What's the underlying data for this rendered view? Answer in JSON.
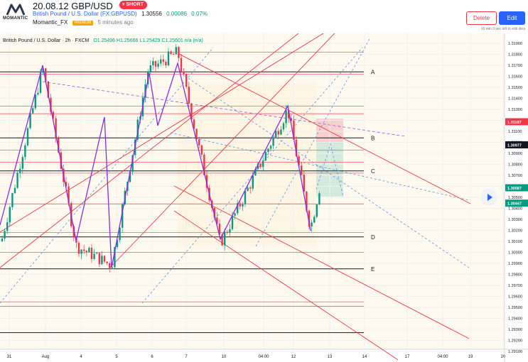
{
  "header": {
    "title": "20.08.12 GBP/USD",
    "badge": "SHORT",
    "symbol_name": "British Pound / U.S. Dollar (FX:GBPUSD)",
    "price": "1.30556",
    "change": "0.00086",
    "change_pct": "0.07%",
    "author": "Momantic_FX",
    "author_tag": "PREMIUM",
    "posted": "5 minutes ago",
    "logo_text": "MOMANTIC",
    "delete_label": "Delete",
    "edit_label": "Edit",
    "edit_note": "10 min 3 sec left to edit idea"
  },
  "legend": {
    "symbol": "British Pound / U.S. Dollar · 2h · FXCM",
    "ohlc": "O1.25496  H1.25666  L1.25429  C1.25601  n/a (n/a)"
  },
  "price_axis": {
    "ticks": [
      "1.31900",
      "1.31800",
      "1.31700",
      "1.31600",
      "1.31500",
      "1.31400",
      "1.31300",
      "1.31200",
      "1.31100",
      "1.31000",
      "1.30900",
      "1.30800",
      "1.30700",
      "1.30600",
      "1.30500",
      "1.30400",
      "1.30300",
      "1.30200",
      "1.30100",
      "1.30000",
      "1.29900",
      "1.29800",
      "1.29700",
      "1.29600",
      "1.29500",
      "1.29400",
      "1.29300",
      "1.29200",
      "1.29100"
    ],
    "tags": [
      {
        "label": "1.31187",
        "color": "#f23645"
      },
      {
        "label": "1.30977",
        "color": "#131722"
      },
      {
        "label": "1.30587",
        "color": "#089981"
      },
      {
        "label": "1.30447",
        "color": "#089981"
      }
    ]
  },
  "time_axis": [
    "31",
    "Aug",
    "4",
    "5",
    "6",
    "7",
    "10",
    "04:00",
    "12",
    "13",
    "14",
    "17",
    "04:00",
    "19",
    "20"
  ],
  "levels": [
    "A",
    "B",
    "C",
    "D",
    "E"
  ],
  "colors": {
    "bull": "#089981",
    "bear": "#f23645",
    "accent": "#2962ff",
    "pattern": "#7b2ff7",
    "channel": "#f23645",
    "fib_fill": "#fff4e0"
  },
  "icons": {
    "play": "play-icon",
    "logo": "momantic-logo"
  }
}
